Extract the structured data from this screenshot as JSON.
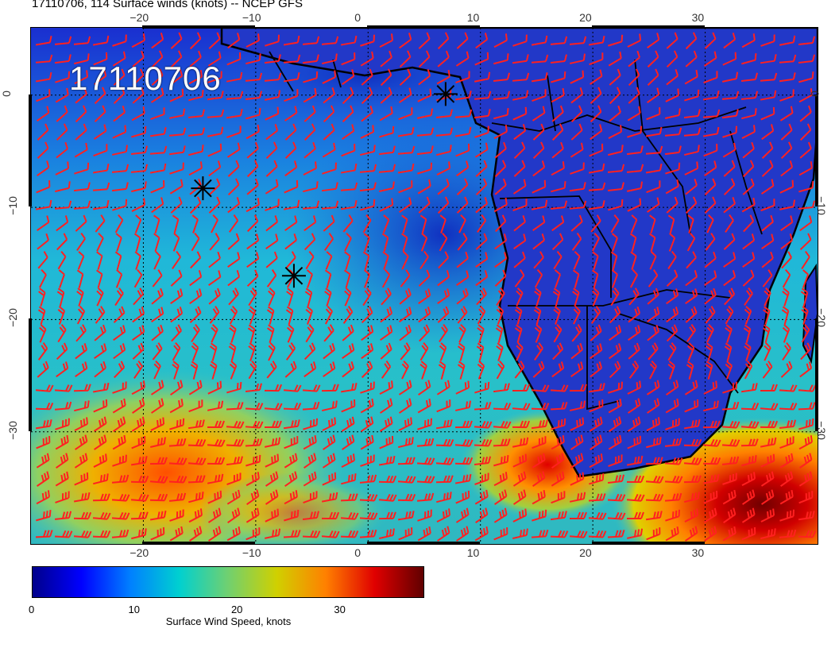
{
  "header": {
    "title": "17110706, 114 Surface winds (knots) -- NCEP GFS",
    "stamp": "17110706"
  },
  "map": {
    "projection": "lat-lon",
    "lon_range": [
      -30,
      40
    ],
    "lat_range": [
      -40,
      6
    ],
    "lon_ticks": [
      "−20",
      "−10",
      "0",
      "10",
      "20",
      "30"
    ],
    "lat_ticks": [
      "0",
      "−10",
      "−20",
      "−30"
    ],
    "grid": "dotted",
    "barb_color": "#ff2020",
    "land_outline_color": "#000000",
    "storm_markers": [
      {
        "lon": 6.9,
        "lat": 0.1
      },
      {
        "lon": -14.7,
        "lat": -8.3
      },
      {
        "lon": -6.6,
        "lat": -16.1
      }
    ]
  },
  "colorbar": {
    "label": "Surface Wind Speed, knots",
    "ticks": [
      "0",
      "10",
      "20",
      "30"
    ],
    "tick_values": [
      0,
      10,
      20,
      30
    ],
    "range": [
      0,
      38
    ],
    "colors": [
      "#00008b",
      "#0000ff",
      "#0080ff",
      "#00d0d0",
      "#70d070",
      "#d0d000",
      "#ff8000",
      "#e00000",
      "#600000"
    ]
  }
}
